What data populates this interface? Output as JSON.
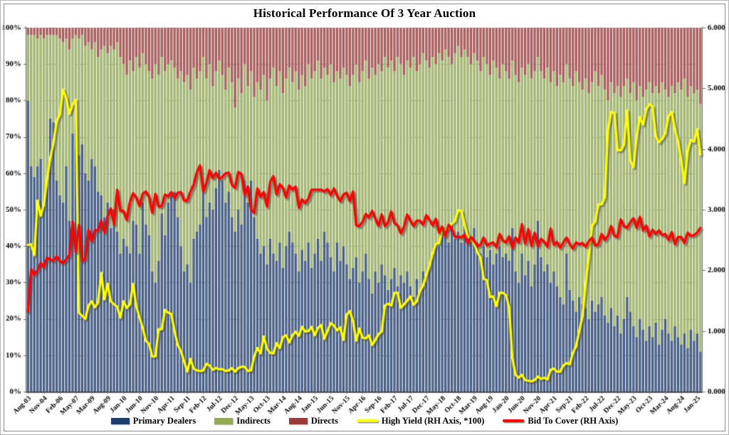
{
  "page": {
    "background": "#FFFFFF",
    "frame_border_color": "#8C8C8C"
  },
  "chart_data": {
    "type": "bar",
    "subtype": "100%-stacked bars with two overlay lines",
    "title": "Historical Performance Of 3 Year Auction",
    "grid": "horizontal dotted gray lines every 10%",
    "legend_position": "bottom center",
    "left_axis": {
      "min": 0,
      "max": 100,
      "step": 10,
      "tick_labels": [
        "0%",
        "10%",
        "20%",
        "30%",
        "40%",
        "50%",
        "60%",
        "70%",
        "80%",
        "90%",
        "100%"
      ]
    },
    "right_axis": {
      "min": 0,
      "max": 6,
      "step": 1,
      "tick_labels": [
        "0.000",
        "1.000",
        "2.000",
        "3.000",
        "4.000",
        "5.000",
        "6.000"
      ]
    },
    "x_axis": {
      "bar_count": 212,
      "note": "quarterly auctions Aug-03 through May-07, then monthly Nov-08 through Feb-25; every 5th bar is labeled",
      "tick_indices": [
        0,
        5,
        10,
        15,
        20,
        25,
        30,
        35,
        40,
        45,
        50,
        55,
        60,
        65,
        70,
        75,
        80,
        85,
        90,
        95,
        100,
        105,
        110,
        115,
        120,
        125,
        130,
        135,
        140,
        145,
        150,
        155,
        160,
        165,
        170,
        175,
        180,
        185,
        190,
        195,
        200,
        205,
        210
      ],
      "tick_labels": [
        "Aug-03",
        "Nov-04",
        "Feb-06",
        "May-07",
        "Mar-09",
        "Aug-09",
        "Jan-10",
        "Jun-10",
        "Nov-10",
        "Apr-11",
        "Sep-11",
        "Feb-12",
        "Jul-12",
        "Dec-12",
        "May-13",
        "Oct-13",
        "Mar-14",
        "Aug-14",
        "Jan-15",
        "Jun-15",
        "Nov-15",
        "Apr-16",
        "Sep-16",
        "Feb-17",
        "Jul-17",
        "Dec-17",
        "May-18",
        "Oct-18",
        "Mar-19",
        "Aug-19",
        "Jan-20",
        "Jun-20",
        "Nov-20",
        "Apr-21",
        "Sep-21",
        "Feb-22",
        "Jul-22",
        "Dec-22",
        "May-23",
        "Oct-23",
        "Mar-24",
        "Aug-24",
        "Jan-25"
      ]
    },
    "series": [
      {
        "name": "Primary Dealers",
        "type": "bar",
        "stack": true,
        "axis": "left",
        "unit": "%",
        "color": "#1F3C6E",
        "values": [
          80,
          62,
          59,
          62,
          64,
          51,
          56,
          75,
          74,
          58,
          54,
          52,
          62,
          47,
          71,
          80,
          65,
          68,
          60,
          58,
          64,
          62,
          55,
          54,
          48,
          52,
          45,
          50,
          44,
          38,
          42,
          40,
          38,
          47,
          46,
          38,
          52,
          46,
          43,
          33,
          30,
          36,
          49,
          43,
          52,
          54,
          55,
          48,
          40,
          33,
          35,
          30,
          42,
          44,
          46,
          56,
          48,
          52,
          50,
          56,
          61,
          58,
          52,
          55,
          48,
          44,
          50,
          46,
          58,
          52,
          58,
          48,
          42,
          38,
          40,
          35,
          42,
          38,
          36,
          41,
          34,
          40,
          44,
          41,
          38,
          33,
          39,
          36,
          41,
          34,
          38,
          42,
          36,
          44,
          41,
          37,
          33,
          41,
          36,
          40,
          35,
          31,
          34,
          37,
          30,
          33,
          38,
          31,
          27,
          33,
          30,
          35,
          32,
          28,
          31,
          34,
          29,
          32,
          30,
          33,
          29,
          26,
          31,
          28,
          33,
          30,
          35,
          38,
          41,
          40,
          44,
          43,
          41,
          46,
          42,
          44,
          41,
          46,
          44,
          42,
          45,
          41,
          38,
          40,
          37,
          39,
          35,
          38,
          40,
          37,
          38,
          36,
          45,
          33,
          30,
          38,
          32,
          36,
          29,
          35,
          47,
          37,
          33,
          35,
          30,
          33,
          29,
          26,
          24,
          38,
          28,
          25,
          22,
          26,
          24,
          23,
          20,
          25,
          22,
          24,
          26,
          21,
          19,
          23,
          18,
          21,
          16,
          20,
          26,
          22,
          18,
          15,
          20,
          17,
          14,
          18,
          15,
          19,
          13,
          17,
          20,
          16,
          14,
          18,
          15,
          13,
          16,
          12,
          17,
          14,
          16,
          11
        ]
      },
      {
        "name": "Indirects",
        "type": "bar",
        "stack": true,
        "axis": "left",
        "unit": "%",
        "color": "#93AC53",
        "derived": "100 - Primary Dealers - Directs"
      },
      {
        "name": "Directs",
        "type": "bar",
        "stack": true,
        "axis": "left",
        "unit": "%",
        "color": "#9B3A39",
        "values": [
          2,
          2,
          2,
          3,
          2,
          3,
          2,
          2,
          2,
          2,
          3,
          4,
          3,
          6,
          3,
          2,
          3,
          2,
          5,
          4,
          6,
          4,
          8,
          6,
          5,
          7,
          5,
          6,
          4,
          8,
          10,
          13,
          9,
          12,
          8,
          11,
          7,
          10,
          12,
          14,
          10,
          13,
          8,
          12,
          10,
          9,
          11,
          14,
          12,
          15,
          13,
          17,
          11,
          14,
          12,
          8,
          14,
          10,
          16,
          12,
          9,
          13,
          17,
          11,
          15,
          22,
          14,
          18,
          10,
          16,
          12,
          19,
          15,
          17,
          13,
          20,
          14,
          11,
          16,
          12,
          18,
          14,
          11,
          15,
          12,
          17,
          13,
          16,
          10,
          14,
          12,
          9,
          14,
          11,
          13,
          10,
          15,
          12,
          14,
          11,
          13,
          16,
          13,
          10,
          15,
          12,
          9,
          14,
          11,
          13,
          10,
          12,
          8,
          11,
          9,
          12,
          8,
          10,
          13,
          9,
          11,
          8,
          12,
          10,
          7,
          9,
          11,
          8,
          10,
          7,
          9,
          6,
          8,
          10,
          7,
          5,
          8,
          6,
          8,
          10,
          7,
          9,
          12,
          8,
          10,
          13,
          9,
          11,
          14,
          10,
          12,
          14,
          9,
          13,
          15,
          11,
          13,
          10,
          14,
          12,
          8,
          12,
          14,
          11,
          15,
          12,
          16,
          13,
          15,
          10,
          14,
          16,
          12,
          15,
          17,
          14,
          18,
          15,
          12,
          16,
          13,
          17,
          20,
          15,
          18,
          16,
          19,
          16,
          14,
          18,
          15,
          20,
          16,
          19,
          17,
          15,
          18,
          16,
          18,
          15,
          17,
          19,
          16,
          18,
          15,
          17,
          14,
          19,
          16,
          18,
          17,
          21
        ]
      },
      {
        "name": "High Yield (RH Axis, *100)",
        "type": "line",
        "axis": "right",
        "color": "#FFFF00",
        "values": [
          2.42,
          2.43,
          2.25,
          3.15,
          2.9,
          3.09,
          3.5,
          3.85,
          4.1,
          4.46,
          4.57,
          4.98,
          4.84,
          4.58,
          4.74,
          4.81,
          1.3,
          1.25,
          1.2,
          1.42,
          1.49,
          1.39,
          1.47,
          1.96,
          1.52,
          1.78,
          1.49,
          1.44,
          1.4,
          1.22,
          1.49,
          1.38,
          1.44,
          1.78,
          1.41,
          1.22,
          1.06,
          0.84,
          0.79,
          0.58,
          0.58,
          1.03,
          1.03,
          1.35,
          1.3,
          1.28,
          1.0,
          0.77,
          0.67,
          0.5,
          0.33,
          0.54,
          0.38,
          0.35,
          0.34,
          0.35,
          0.46,
          0.43,
          0.36,
          0.39,
          0.37,
          0.37,
          0.34,
          0.35,
          0.39,
          0.33,
          0.39,
          0.41,
          0.41,
          0.34,
          0.35,
          0.58,
          0.72,
          0.63,
          0.91,
          0.71,
          0.64,
          0.63,
          0.8,
          0.72,
          0.9,
          0.93,
          0.81,
          0.93,
          0.99,
          0.92,
          1.07,
          0.99,
          1.0,
          1.07,
          0.93,
          1.05,
          1.1,
          0.87,
          1.0,
          1.13,
          1.09,
          1.01,
          1.06,
          0.85,
          1.27,
          1.33,
          1.17,
          0.84,
          1.04,
          0.89,
          0.88,
          0.93,
          0.77,
          0.85,
          0.95,
          0.99,
          1.42,
          1.45,
          1.42,
          1.63,
          1.63,
          1.38,
          1.44,
          1.5,
          1.57,
          1.43,
          1.49,
          1.66,
          1.75,
          1.93,
          2.08,
          2.28,
          2.44,
          2.45,
          2.66,
          2.66,
          2.69,
          2.77,
          2.82,
          2.99,
          2.98,
          2.75,
          2.56,
          2.5,
          2.45,
          2.3,
          2.21,
          1.86,
          1.84,
          1.56,
          1.57,
          1.41,
          1.63,
          1.63,
          1.59,
          1.39,
          0.56,
          0.28,
          0.23,
          0.28,
          0.19,
          0.18,
          0.17,
          0.19,
          0.25,
          0.21,
          0.23,
          0.2,
          0.36,
          0.38,
          0.33,
          0.33,
          0.43,
          0.47,
          0.45,
          0.64,
          0.75,
          1.0,
          1.24,
          1.78,
          2.24,
          2.74,
          2.81,
          3.09,
          3.09,
          3.2,
          4.32,
          4.61,
          4.6,
          3.98,
          3.98,
          4.07,
          4.64,
          3.81,
          3.7,
          4.2,
          4.53,
          4.4,
          4.66,
          4.74,
          4.7,
          4.21,
          4.11,
          4.17,
          4.26,
          4.55,
          4.61,
          4.33,
          4.13,
          3.81,
          3.44,
          3.97,
          4.15,
          4.12,
          4.33,
          3.91
        ]
      },
      {
        "name": "Bid To Cover (RH Axis)",
        "type": "line",
        "axis": "right",
        "color": "#FF0000",
        "values": [
          1.32,
          2.02,
          1.93,
          2.0,
          2.12,
          2.05,
          2.21,
          2.18,
          2.16,
          2.23,
          2.15,
          2.12,
          2.18,
          2.25,
          2.8,
          2.3,
          2.75,
          2.15,
          2.2,
          2.67,
          2.48,
          2.66,
          2.66,
          2.82,
          2.62,
          2.89,
          3.02,
          2.76,
          3.33,
          2.98,
          2.98,
          2.83,
          3.13,
          3.27,
          3.2,
          3.06,
          3.26,
          3.3,
          3.21,
          2.95,
          3.26,
          3.05,
          3.06,
          3.25,
          3.22,
          3.29,
          3.19,
          3.28,
          3.29,
          3.15,
          3.15,
          3.3,
          3.41,
          3.62,
          3.73,
          3.3,
          3.44,
          3.65,
          3.52,
          3.61,
          3.51,
          3.54,
          3.6,
          3.61,
          3.41,
          3.36,
          3.62,
          3.59,
          3.24,
          3.38,
          3.0,
          2.95,
          3.35,
          3.21,
          3.29,
          3.05,
          3.46,
          3.55,
          3.25,
          3.42,
          3.36,
          3.2,
          3.4,
          3.33,
          3.38,
          3.03,
          3.17,
          3.11,
          3.18,
          3.33,
          3.33,
          3.33,
          3.33,
          3.3,
          3.34,
          3.24,
          3.35,
          3.23,
          3.14,
          3.25,
          3.28,
          3.14,
          3.3,
          2.74,
          2.73,
          2.8,
          2.93,
          2.87,
          2.98,
          2.85,
          2.73,
          2.92,
          2.73,
          2.79,
          2.97,
          2.78,
          2.74,
          2.61,
          2.72,
          2.92,
          2.82,
          2.73,
          2.82,
          2.82,
          2.75,
          2.91,
          2.83,
          2.74,
          2.85,
          2.62,
          2.72,
          2.56,
          2.75,
          2.68,
          2.55,
          2.56,
          2.54,
          2.59,
          2.44,
          2.55,
          2.49,
          2.4,
          2.42,
          2.54,
          2.41,
          2.44,
          2.46,
          2.38,
          2.6,
          2.49,
          2.46,
          2.56,
          2.37,
          2.54,
          2.46,
          2.76,
          2.44,
          2.68,
          2.4,
          2.62,
          2.4,
          2.52,
          2.47,
          2.39,
          2.69,
          2.42,
          2.47,
          2.37,
          2.46,
          2.54,
          2.43,
          2.36,
          2.46,
          2.43,
          2.45,
          2.39,
          2.48,
          2.54,
          2.41,
          2.43,
          2.6,
          2.5,
          2.57,
          2.73,
          2.57,
          2.55,
          2.84,
          2.73,
          2.7,
          2.79,
          2.86,
          2.7,
          2.88,
          2.66,
          2.74,
          2.56,
          2.67,
          2.6,
          2.66,
          2.58,
          2.6,
          2.5,
          2.63,
          2.43,
          2.55,
          2.55,
          2.45,
          2.62,
          2.57,
          2.58,
          2.62,
          2.7
        ]
      }
    ]
  }
}
